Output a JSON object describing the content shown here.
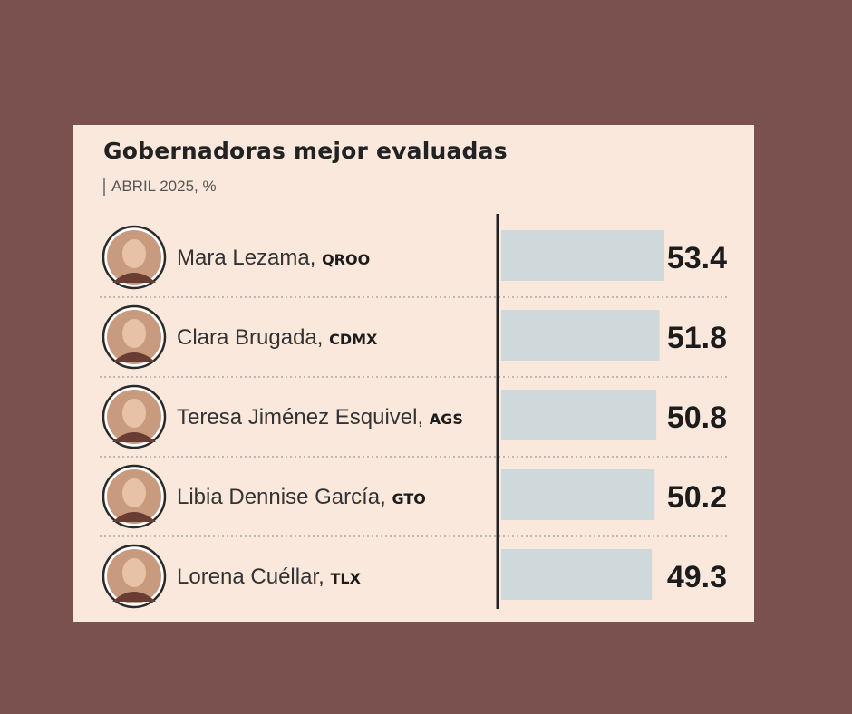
{
  "title": "Gobernadoras mejor evaluadas",
  "subtitle": "ABRIL  2025, %",
  "colors": {
    "bar": "#cfd8da",
    "background": "#fbe8dc",
    "frame": "#7b5150",
    "axis": "#222222"
  },
  "chart_data": {
    "type": "bar",
    "orientation": "horizontal",
    "title": "Gobernadoras mejor evaluadas",
    "subtitle": "ABRIL  2025, %",
    "categories": [
      {
        "name": "Mara Lezama",
        "state": "QROO",
        "value": 53.4,
        "label": "53.4"
      },
      {
        "name": "Clara Brugada",
        "state": "CDMX",
        "value": 51.8,
        "label": "51.8"
      },
      {
        "name": "Teresa Jiménez Esquivel",
        "state": "AGS",
        "value": 50.8,
        "label": "50.8"
      },
      {
        "name": "Libia Dennise García",
        "state": "GTO",
        "value": 50.2,
        "label": "50.2"
      },
      {
        "name": "Lorena Cuéllar",
        "state": "TLX",
        "value": 49.3,
        "label": "49.3"
      }
    ],
    "values": [
      53.4,
      51.8,
      50.8,
      50.2,
      49.3
    ],
    "xlim": [
      0,
      53.4
    ],
    "grid": false,
    "legend": "none"
  }
}
